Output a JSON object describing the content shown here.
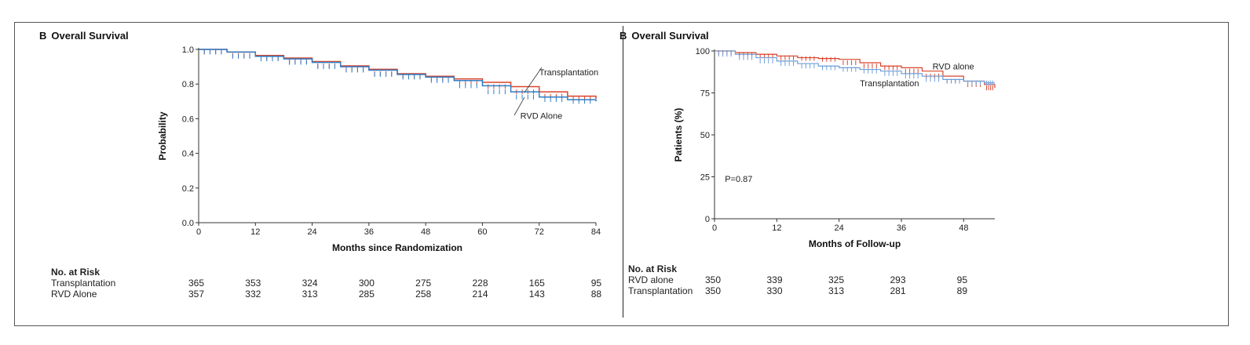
{
  "panels": [
    {
      "letter": "B",
      "title": "Overall Survival",
      "risk_header": "No. at Risk",
      "risk_rows": [
        {
          "label": "Transplantation",
          "values": [
            "365",
            "353",
            "324",
            "300",
            "275",
            "228",
            "165",
            "95"
          ]
        },
        {
          "label": "RVD Alone",
          "values": [
            "357",
            "332",
            "313",
            "285",
            "258",
            "214",
            "143",
            "88"
          ]
        }
      ]
    },
    {
      "letter": "B",
      "title": "Overall Survival",
      "risk_header": "No. at Risk",
      "risk_rows": [
        {
          "label": "RVD alone",
          "values": [
            "350",
            "339",
            "325",
            "293",
            "95"
          ]
        },
        {
          "label": "Transplantation",
          "values": [
            "350",
            "330",
            "313",
            "281",
            "89"
          ]
        }
      ]
    }
  ],
  "chart_data": [
    {
      "type": "line",
      "title": "Overall Survival",
      "xlabel": "Months since Randomization",
      "ylabel": "Probability",
      "xlim": [
        0,
        84
      ],
      "ylim": [
        0,
        1.0
      ],
      "xticks": [
        "0",
        "12",
        "24",
        "36",
        "48",
        "60",
        "72",
        "84"
      ],
      "yticks": [
        "0.0",
        "0.2",
        "0.4",
        "0.6",
        "0.8",
        "1.0"
      ],
      "grid": false,
      "series": [
        {
          "name": "Transplantation",
          "color": "#d9442c",
          "x": [
            0,
            6,
            12,
            18,
            24,
            30,
            36,
            42,
            48,
            54,
            60,
            66,
            72,
            78,
            84
          ],
          "y": [
            1.0,
            0.985,
            0.965,
            0.95,
            0.93,
            0.905,
            0.885,
            0.86,
            0.845,
            0.83,
            0.81,
            0.785,
            0.755,
            0.73,
            0.715
          ]
        },
        {
          "name": "RVD Alone",
          "color": "#2f7fc8",
          "x": [
            0,
            6,
            12,
            18,
            24,
            30,
            36,
            42,
            48,
            54,
            60,
            66,
            72,
            78,
            84
          ],
          "y": [
            1.0,
            0.985,
            0.96,
            0.945,
            0.925,
            0.9,
            0.88,
            0.855,
            0.84,
            0.82,
            0.79,
            0.755,
            0.725,
            0.71,
            0.7
          ]
        }
      ],
      "annotations": [
        {
          "text": "Transplantation",
          "x": 72,
          "y": 0.85
        },
        {
          "text": "RVD Alone",
          "x": 68,
          "y": 0.6
        }
      ]
    },
    {
      "type": "line",
      "title": "Overall Survival",
      "xlabel": "Months of Follow-up",
      "ylabel": "Patients (%)",
      "xlim": [
        0,
        54
      ],
      "ylim": [
        0,
        100
      ],
      "xticks": [
        "0",
        "12",
        "24",
        "36",
        "48"
      ],
      "yticks": [
        "0",
        "25",
        "50",
        "75",
        "100"
      ],
      "grid": false,
      "series": [
        {
          "name": "RVD alone",
          "color": "#d9442c",
          "x": [
            0,
            4,
            8,
            12,
            16,
            20,
            24,
            28,
            32,
            36,
            40,
            44,
            48,
            52,
            54
          ],
          "y": [
            100,
            99,
            98,
            97,
            96,
            95.5,
            95,
            93,
            91,
            90,
            88,
            85,
            82,
            80,
            78
          ]
        },
        {
          "name": "Transplantation",
          "color": "#6f9fd8",
          "x": [
            0,
            4,
            8,
            12,
            16,
            20,
            24,
            28,
            32,
            36,
            40,
            44,
            48,
            52,
            54
          ],
          "y": [
            100,
            98,
            96,
            94,
            92.5,
            91,
            90,
            89,
            88,
            86.5,
            85,
            83,
            82,
            81,
            81
          ]
        }
      ],
      "annotations": [
        {
          "text": "P=0.87",
          "x": 2,
          "y": 22
        },
        {
          "text": "RVD alone",
          "x": 42,
          "y": 89
        },
        {
          "text": "Transplantation",
          "x": 28,
          "y": 79
        }
      ]
    }
  ]
}
